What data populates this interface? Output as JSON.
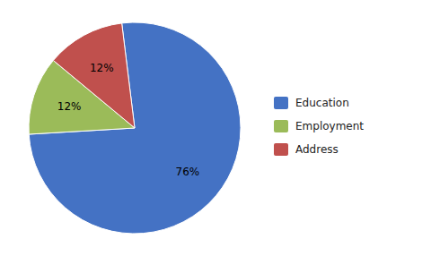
{
  "chart_data": {
    "type": "pie",
    "categories": [
      "Education",
      "Employment",
      "Address"
    ],
    "values": [
      76,
      12,
      12
    ],
    "value_labels": [
      "76%",
      "12%",
      "12%"
    ],
    "colors": [
      "#4472C4",
      "#9BBB59",
      "#C0504D"
    ],
    "data_labels": true,
    "legend": "right"
  }
}
